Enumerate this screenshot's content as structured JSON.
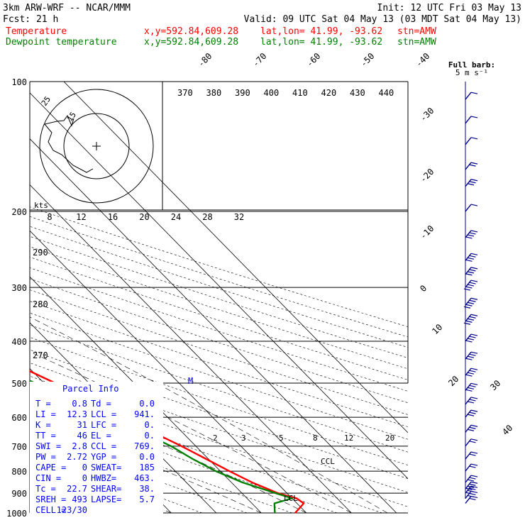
{
  "header": {
    "model": "3km ARW-WRF -- NCAR/MMM",
    "init": "Init: 12 UTC Fri 03 May 13",
    "fcst": "Fcst:   21 h",
    "valid": "Valid: 09 UTC Sat 04 May 13 (03 MDT Sat 04 May 13)"
  },
  "legend": [
    {
      "name": "Temperature",
      "xy": "x,y=592.84,609.28",
      "latlon": "lat,lon= 41.99, -93.62",
      "stn": "stn=AMW",
      "color": "#ff0000"
    },
    {
      "name": "Dewpoint temperature",
      "xy": "x,y=592.84,609.28",
      "latlon": "lat,lon= 41.99, -93.62",
      "stn": "stn=AMW",
      "color": "#008000"
    }
  ],
  "barb_legend": {
    "title": "Full barb:",
    "sub": "5 m s⁻¹"
  },
  "parcel_info": {
    "title": "Parcel Info",
    "rows": [
      [
        "T  =",
        "0.8",
        "Td =",
        "0.0"
      ],
      [
        "LI =",
        "12.3",
        "LCL =",
        "941."
      ],
      [
        "K  =",
        "31",
        "LFC =",
        "0."
      ],
      [
        "TT =",
        "46",
        "EL  =",
        "0."
      ],
      [
        "SWI =",
        "2.8",
        "CCL =",
        "769."
      ],
      [
        "PW =",
        "2.72",
        "YGP =",
        "0.0"
      ],
      [
        "CAPE =",
        "0",
        "SWEAT=",
        "185"
      ],
      [
        "CIN =",
        "0",
        "HWBZ=",
        "463."
      ],
      [
        "Tc =",
        "22.7",
        "SHEAR=",
        "38."
      ],
      [
        "SREH =",
        "493",
        "LAPSE=",
        "5.7"
      ],
      [
        "CELL =",
        "123/30",
        "",
        ""
      ]
    ]
  },
  "annotations": {
    "ccl": "CCL",
    "lcl": "LCL",
    "kts": "kts",
    "m": "M"
  },
  "colors": {
    "temperature": "#ff0000",
    "dewpoint": "#008000",
    "header_red": "#ff0000",
    "header_green": "#008000",
    "parcel_blue": "#0000ff",
    "wind_blue": "#00008b"
  },
  "chart_data": {
    "type": "line",
    "title": "",
    "pressure_axis": {
      "label_values": [
        100,
        200,
        300,
        400,
        500,
        600,
        700,
        800,
        900,
        1000
      ],
      "scale": "log"
    },
    "isotherm_labels": [
      -80,
      -70,
      -60,
      -50,
      -40,
      -30,
      -20,
      -10,
      0,
      10,
      20,
      30,
      40
    ],
    "theta_labels": [
      370,
      380,
      390,
      400,
      410,
      420,
      430,
      440
    ],
    "theta_left_labels": [
      290,
      280,
      270
    ],
    "mixing_ratio_labels": [
      2,
      3,
      5,
      8,
      12,
      20
    ],
    "hodograph_speed_labels": [
      8,
      12,
      16,
      20,
      24,
      28,
      32
    ],
    "hodograph_ring_labels": [
      15,
      25
    ],
    "series": [
      {
        "name": "Temperature",
        "color": "#ff0000",
        "points": [
          [
            1000,
            7.5
          ],
          [
            975,
            9.5
          ],
          [
            950,
            11.5
          ],
          [
            925,
            11
          ],
          [
            900,
            8
          ],
          [
            850,
            4.6
          ],
          [
            800,
            2
          ],
          [
            750,
            -0.5
          ],
          [
            700,
            -3.2
          ],
          [
            650,
            -6.5
          ],
          [
            600,
            -10
          ],
          [
            550,
            -13.5
          ],
          [
            500,
            -17.5
          ],
          [
            450,
            -22.5
          ],
          [
            400,
            -28.8
          ],
          [
            350,
            -36
          ],
          [
            300,
            -45
          ],
          [
            250,
            -54.8
          ],
          [
            225,
            -58.5
          ],
          [
            200,
            -56.5
          ],
          [
            175,
            -55
          ],
          [
            150,
            -55
          ],
          [
            125,
            -53
          ],
          [
            100,
            -51
          ]
        ]
      },
      {
        "name": "Dewpoint temperature",
        "color": "#008000",
        "points": [
          [
            1000,
            3
          ],
          [
            950,
            5
          ],
          [
            925,
            10
          ],
          [
            900,
            7.5
          ],
          [
            850,
            2.5
          ],
          [
            800,
            -1
          ],
          [
            750,
            -3.5
          ],
          [
            700,
            -5.5
          ],
          [
            650,
            -9
          ],
          [
            600,
            -13
          ],
          [
            550,
            -17.5
          ],
          [
            500,
            -22
          ],
          [
            450,
            -27.5
          ],
          [
            400,
            -34
          ],
          [
            350,
            -41
          ],
          [
            300,
            -49
          ],
          [
            250,
            -58
          ],
          [
            225,
            -64
          ],
          [
            200,
            -64.5
          ],
          [
            175,
            -68
          ],
          [
            150,
            -71
          ],
          [
            125,
            -73
          ],
          [
            110,
            -71
          ],
          [
            100,
            -68
          ]
        ]
      }
    ],
    "wind_barbs": [
      {
        "p": 110,
        "speed": 5
      },
      {
        "p": 125,
        "speed": 5
      },
      {
        "p": 140,
        "speed": 5
      },
      {
        "p": 160,
        "speed": 10
      },
      {
        "p": 175,
        "speed": 15
      },
      {
        "p": 200,
        "speed": 5
      },
      {
        "p": 230,
        "speed": 20
      },
      {
        "p": 260,
        "speed": 20
      },
      {
        "p": 280,
        "speed": 20
      },
      {
        "p": 300,
        "speed": 25
      },
      {
        "p": 330,
        "speed": 25
      },
      {
        "p": 360,
        "speed": 25
      },
      {
        "p": 400,
        "speed": 20
      },
      {
        "p": 440,
        "speed": 20
      },
      {
        "p": 480,
        "speed": 20
      },
      {
        "p": 520,
        "speed": 20
      },
      {
        "p": 560,
        "speed": 15
      },
      {
        "p": 600,
        "speed": 15
      },
      {
        "p": 650,
        "speed": 15
      },
      {
        "p": 700,
        "speed": 10
      },
      {
        "p": 750,
        "speed": 10
      },
      {
        "p": 800,
        "speed": 10
      },
      {
        "p": 850,
        "speed": 15
      },
      {
        "p": 880,
        "speed": 20
      },
      {
        "p": 900,
        "speed": 20
      },
      {
        "p": 925,
        "speed": 15
      },
      {
        "p": 950,
        "speed": 10
      }
    ]
  }
}
